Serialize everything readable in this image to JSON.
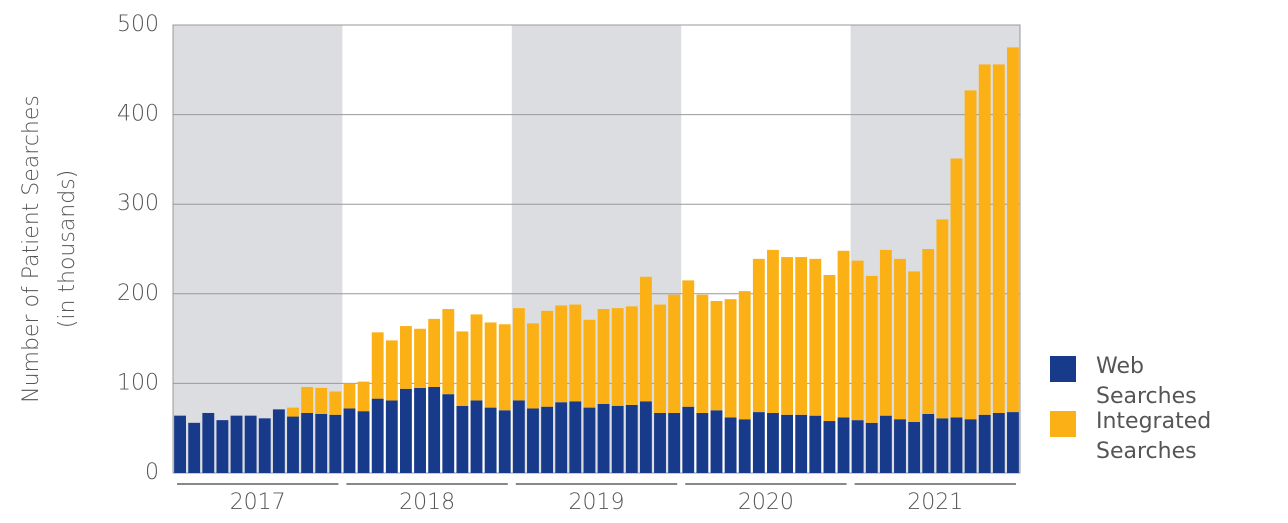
{
  "chart_data": {
    "type": "stacked-bar",
    "ylabel": [
      "Number of Patient Searches",
      "(in thousands)"
    ],
    "year_labels": [
      "2017",
      "2018",
      "2019",
      "2020",
      "2021"
    ],
    "categories": [
      null,
      null,
      null,
      null,
      null,
      null,
      null,
      null,
      null,
      null,
      null,
      null,
      null,
      null,
      null,
      null,
      null,
      null,
      null,
      null,
      null,
      null,
      null,
      null,
      null,
      null,
      null,
      null,
      null,
      null,
      null,
      null,
      null,
      null,
      null,
      null,
      null,
      null,
      null,
      null,
      null,
      null,
      null,
      null,
      null,
      null,
      null,
      null,
      null,
      null,
      null,
      null,
      null,
      null,
      null,
      null,
      null,
      null,
      null,
      null
    ],
    "series": [
      {
        "name": "Web Searches",
        "color": "#173a8a",
        "values": [
          64,
          56,
          67,
          59,
          64,
          64,
          61,
          71,
          63,
          67,
          66,
          65,
          72,
          69,
          83,
          81,
          94,
          95,
          96,
          88,
          75,
          81,
          73,
          70,
          81,
          72,
          74,
          79,
          80,
          73,
          77,
          75,
          76,
          80,
          67,
          67,
          74,
          67,
          70,
          62,
          60,
          68,
          67,
          65,
          65,
          64,
          58,
          62,
          59,
          56,
          64,
          60,
          57,
          66,
          61,
          62,
          60,
          65,
          67,
          68
        ]
      },
      {
        "name": "Integrated Searches",
        "color": "#fbb116",
        "values": [
          0,
          0,
          0,
          0,
          0,
          0,
          0,
          0,
          10,
          29,
          29,
          26,
          28,
          33,
          74,
          67,
          70,
          66,
          76,
          95,
          83,
          96,
          95,
          96,
          103,
          95,
          107,
          108,
          108,
          98,
          106,
          109,
          110,
          139,
          121,
          132,
          141,
          132,
          122,
          132,
          143,
          171,
          182,
          176,
          176,
          175,
          163,
          186,
          178,
          164,
          185,
          179,
          168,
          184,
          222,
          289,
          367,
          391,
          389,
          407
        ]
      }
    ],
    "ylim": [
      0,
      500
    ],
    "yticks": [
      0,
      100,
      200,
      300,
      400,
      500
    ],
    "grid": true,
    "band_color": "#dcdde0"
  }
}
